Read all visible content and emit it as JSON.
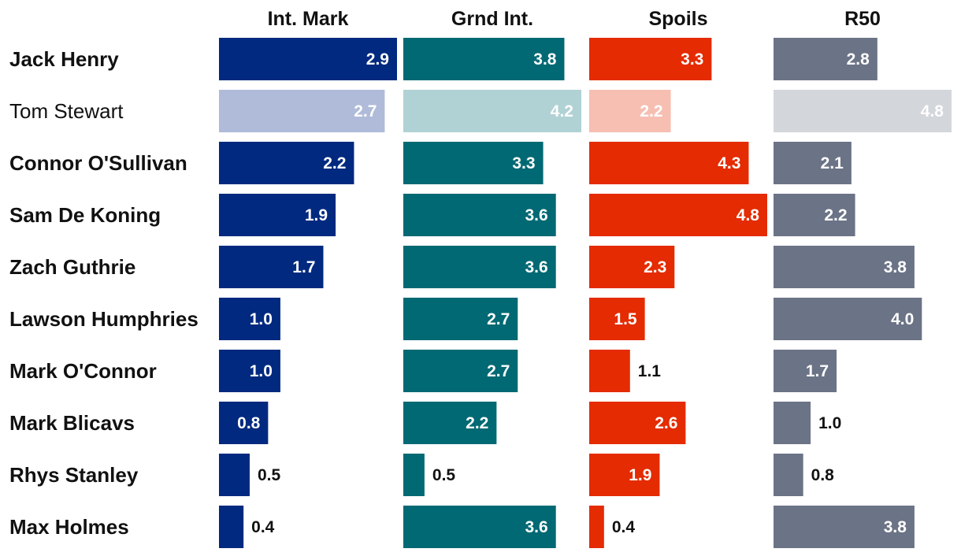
{
  "chart_data": {
    "type": "bar",
    "orientation": "horizontal",
    "title": "",
    "categories": [
      "Jack Henry",
      "Tom Stewart",
      "Connor O'Sullivan",
      "Sam De Koning",
      "Zach Guthrie",
      "Lawson Humphries",
      "Mark O'Connor",
      "Mark Blicavs",
      "Rhys Stanley",
      "Max Holmes"
    ],
    "value_labels": [
      [
        "2.9",
        "3.8",
        "3.3",
        "2.8"
      ],
      [
        "2.7",
        "4.2",
        "2.2",
        "4.8"
      ],
      [
        "2.2",
        "3.3",
        "4.3",
        "2.1"
      ],
      [
        "1.9",
        "3.6",
        "4.8",
        "2.2"
      ],
      [
        "1.7",
        "3.6",
        "2.3",
        "3.8"
      ],
      [
        "1.0",
        "2.7",
        "1.5",
        "4.0"
      ],
      [
        "1.0",
        "2.7",
        "1.1",
        "1.7"
      ],
      [
        "0.8",
        "2.2",
        "2.6",
        "1.0"
      ],
      [
        "0.5",
        "0.5",
        "1.9",
        "0.8"
      ],
      [
        "0.4",
        "3.6",
        "0.4",
        "3.8"
      ]
    ],
    "highlight_muted": "Tom Stewart",
    "series": [
      {
        "name": "Int. Mark",
        "color": "#00297f",
        "muted_color": "#afbbd9",
        "max": 2.9,
        "values": [
          2.9,
          2.7,
          2.2,
          1.9,
          1.7,
          1.0,
          1.0,
          0.8,
          0.5,
          0.4
        ]
      },
      {
        "name": "Grnd Int.",
        "color": "#016973",
        "muted_color": "#b1d2d5",
        "max": 4.2,
        "values": [
          3.8,
          4.2,
          3.3,
          3.6,
          3.6,
          2.7,
          2.7,
          2.2,
          0.5,
          3.6
        ]
      },
      {
        "name": "Spoils",
        "color": "#e42b01",
        "muted_color": "#f6bfb2",
        "max": 4.8,
        "values": [
          3.3,
          2.2,
          4.3,
          4.8,
          2.3,
          1.5,
          1.1,
          2.6,
          1.9,
          0.4
        ]
      },
      {
        "name": "R50",
        "color": "#6b7386",
        "muted_color": "#d3d6db",
        "max": 4.8,
        "values": [
          2.8,
          4.8,
          2.1,
          2.2,
          3.8,
          4.0,
          1.7,
          1.0,
          0.8,
          3.8
        ]
      }
    ]
  }
}
